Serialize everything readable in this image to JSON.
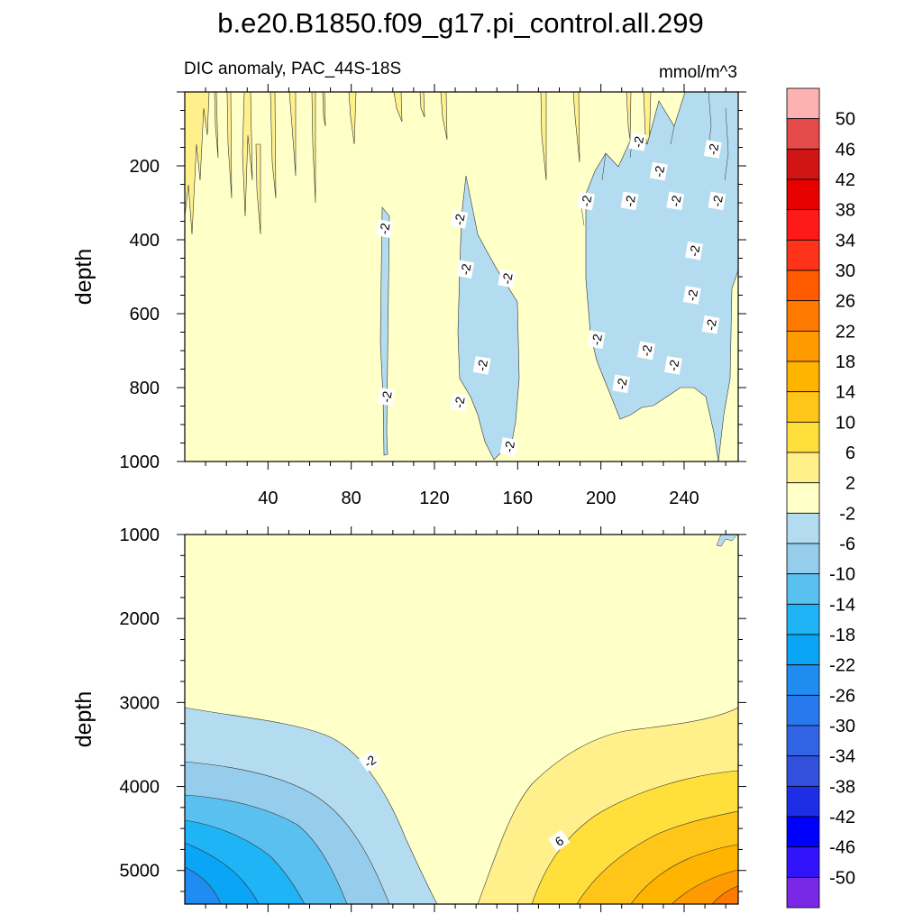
{
  "chart_data": {
    "type": "contour",
    "title": "b.e20.B1850.f09_g17.pi_control.all.299",
    "subtitle_left": "DIC anomaly, PAC_44S-18S",
    "subtitle_right": "mmol/m^3",
    "colorbar": {
      "labels": [
        "50",
        "46",
        "42",
        "38",
        "34",
        "30",
        "26",
        "22",
        "18",
        "14",
        "10",
        "6",
        "2",
        "-2",
        "-6",
        "-10",
        "-14",
        "-18",
        "-22",
        "-26",
        "-30",
        "-34",
        "-38",
        "-42",
        "-46",
        "-50"
      ],
      "colors": [
        "#fdb2b2",
        "#e64b4b",
        "#d11414",
        "#e60000",
        "#ff1a1a",
        "#ff3319",
        "#ff5a00",
        "#ff7a00",
        "#ff9b00",
        "#ffb400",
        "#ffc619",
        "#ffdf3c",
        "#fff08c",
        "#ffffc8",
        "#b4dcf0",
        "#96ccec",
        "#5ac0f0",
        "#1eb4f5",
        "#0aa5f5",
        "#1e8cf0",
        "#2878ee",
        "#3264e6",
        "#3250dc",
        "#1e2ee6",
        "#0000ff",
        "#3214fa",
        "#7828e6"
      ]
    },
    "panels": [
      {
        "name": "upper",
        "ylabel": "depth",
        "xlim": [
          0,
          266
        ],
        "ylim": [
          1000,
          0
        ],
        "xticks": [
          "40",
          "80",
          "120",
          "160",
          "200",
          "240"
        ],
        "xtick_values": [
          40,
          80,
          120,
          160,
          200,
          240
        ],
        "yticks": [
          "200",
          "400",
          "600",
          "800",
          "1000"
        ],
        "ytick_values": [
          200,
          400,
          600,
          800,
          1000
        ],
        "contour_labels": [
          {
            "text": "-2",
            "x": 96,
            "y": 370
          },
          {
            "text": "-2",
            "x": 97,
            "y": 825
          },
          {
            "text": "-2",
            "x": 132,
            "y": 345
          },
          {
            "text": "-2",
            "x": 135,
            "y": 480
          },
          {
            "text": "-2",
            "x": 155,
            "y": 505
          },
          {
            "text": "-2",
            "x": 143,
            "y": 740
          },
          {
            "text": "-2",
            "x": 132,
            "y": 840
          },
          {
            "text": "-2",
            "x": 156,
            "y": 960
          },
          {
            "text": "-2",
            "x": 193,
            "y": 295
          },
          {
            "text": "-2",
            "x": 214,
            "y": 295
          },
          {
            "text": "-2",
            "x": 218,
            "y": 135
          },
          {
            "text": "-2",
            "x": 228,
            "y": 215
          },
          {
            "text": "-2",
            "x": 236,
            "y": 295
          },
          {
            "text": "-2",
            "x": 254,
            "y": 155
          },
          {
            "text": "-2",
            "x": 256,
            "y": 295
          },
          {
            "text": "-2",
            "x": 245,
            "y": 430
          },
          {
            "text": "-2",
            "x": 244,
            "y": 550
          },
          {
            "text": "-2",
            "x": 253,
            "y": 630
          },
          {
            "text": "-2",
            "x": 198,
            "y": 670
          },
          {
            "text": "-2",
            "x": 222,
            "y": 700
          },
          {
            "text": "-2",
            "x": 235,
            "y": 740
          },
          {
            "text": "-2",
            "x": 210,
            "y": 790
          }
        ]
      },
      {
        "name": "lower",
        "ylabel": "depth",
        "xlim": [
          0,
          266
        ],
        "ylim": [
          5400,
          1000
        ],
        "yticks": [
          "1000",
          "2000",
          "3000",
          "4000",
          "5000"
        ],
        "ytick_values": [
          1000,
          2000,
          3000,
          4000,
          5000
        ],
        "contour_labels": [
          {
            "text": "-2",
            "x": 89,
            "y": 3700
          },
          {
            "text": "6",
            "x": 180,
            "y": 4650
          }
        ]
      }
    ]
  }
}
